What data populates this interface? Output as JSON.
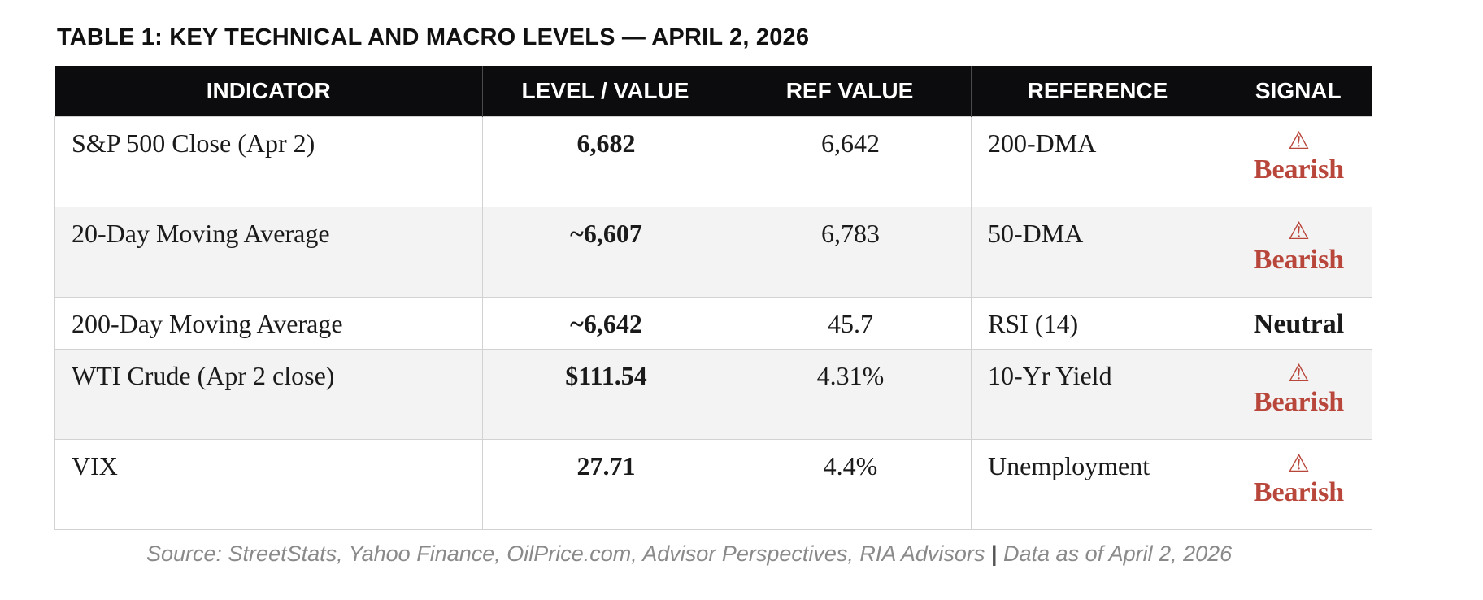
{
  "caption": "TABLE 1: KEY TECHNICAL AND MACRO LEVELS — APRIL 2, 2026",
  "headers": {
    "indicator": "INDICATOR",
    "level": "LEVEL / VALUE",
    "ref_value": "REF VALUE",
    "reference": "REFERENCE",
    "signal": "SIGNAL"
  },
  "rows": [
    {
      "indicator": "S&P 500 Close (Apr 2)",
      "level": "6,682",
      "ref_value": "6,642",
      "reference": "200-DMA",
      "signal_icon": "⚠",
      "signal": "Bearish"
    },
    {
      "indicator": "20-Day Moving Average",
      "level": "~6,607",
      "ref_value": "6,783",
      "reference": "50-DMA",
      "signal_icon": "⚠",
      "signal": "Bearish"
    },
    {
      "indicator": "200-Day Moving Average",
      "level": "~6,642",
      "ref_value": "45.7",
      "reference": "RSI (14)",
      "signal": "Neutral"
    },
    {
      "indicator": "WTI Crude (Apr 2 close)",
      "level": "$111.54",
      "ref_value": "4.31%",
      "reference": "10-Yr Yield",
      "signal_icon": "⚠",
      "signal": "Bearish"
    },
    {
      "indicator": "VIX",
      "level": "27.71",
      "ref_value": "4.4%",
      "reference": "Unemployment",
      "signal_icon": "⚠",
      "signal": "Bearish"
    }
  ],
  "source": {
    "text": "Source: StreetStats, Yahoo Finance, OilPrice.com, Advisor Perspectives, RIA Advisors",
    "separator": "|",
    "date": "Data as of April 2, 2026"
  },
  "colors": {
    "header_bg": "#0c0c0e",
    "bearish": "#b8463a",
    "neutral": "#8c8c8c",
    "alt_row": "#f3f3f3"
  }
}
